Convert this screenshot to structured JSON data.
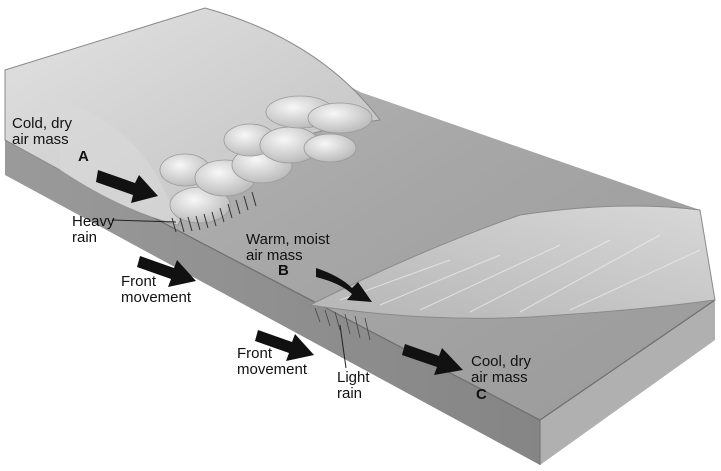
{
  "labels": {
    "cold_air_mass": "Cold, dry\nair mass",
    "letter_a": "A",
    "heavy_rain": "Heavy\nrain",
    "warm_air_mass": "Warm, moist\nair mass",
    "letter_b": "B",
    "front_movement_1": "Front\nmovement",
    "front_movement_2": "Front\nmovement",
    "light_rain": "Light\nrain",
    "cool_air_mass": "Cool, dry\nair mass",
    "letter_c": "C"
  },
  "colors": {
    "ground_top": "#a9a9a9",
    "ground_front": "#8c8c8c",
    "ground_side": "#b4b4b4",
    "cold_wedge": "#cfcfcf",
    "arrow": "#111111",
    "cloud": "#e6e6e6"
  },
  "icons": [
    "arrow-right-down-icon",
    "cloud-icon",
    "rain-streaks-icon"
  ]
}
